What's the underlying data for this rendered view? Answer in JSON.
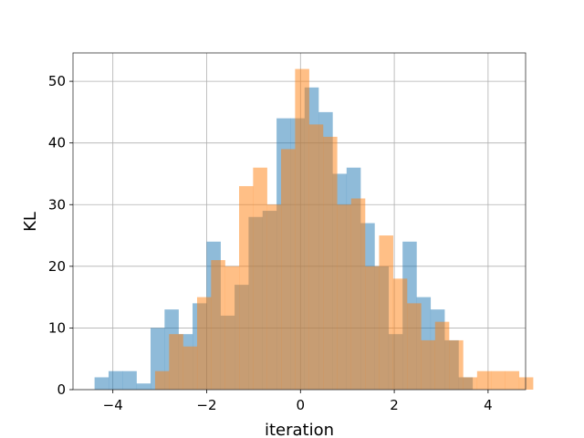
{
  "chart_data": {
    "type": "bar",
    "subtype": "overlapping-histogram",
    "xlabel": "iteration",
    "ylabel": "KL",
    "xlim": [
      -4.85,
      4.8
    ],
    "ylim": [
      0,
      54.6
    ],
    "grid": true,
    "x_ticks": [
      -4,
      -2,
      0,
      2,
      4
    ],
    "x_tick_labels": [
      "−4",
      "−2",
      "0",
      "2",
      "4"
    ],
    "y_ticks": [
      0,
      10,
      20,
      30,
      40,
      50
    ],
    "y_tick_labels": [
      "0",
      "10",
      "20",
      "30",
      "40",
      "50"
    ],
    "series": [
      {
        "color": "#1f77b4",
        "opacity": 0.5,
        "bin_start": -4.39,
        "bin_width": 0.2985,
        "counts": [
          2,
          3,
          3,
          1,
          10,
          13,
          9,
          14,
          24,
          12,
          17,
          28,
          29,
          44,
          44,
          49,
          45,
          35,
          36,
          27,
          20,
          9,
          24,
          15,
          13,
          8,
          2
        ]
      },
      {
        "color": "#ff7f0e",
        "opacity": 0.5,
        "bin_start": -3.1,
        "bin_width": 0.2985,
        "counts": [
          3,
          9,
          7,
          15,
          21,
          20,
          33,
          36,
          30,
          39,
          52,
          43,
          41,
          30,
          31,
          20,
          25,
          18,
          14,
          8,
          11,
          8,
          2,
          3,
          3,
          3,
          2
        ]
      }
    ]
  }
}
